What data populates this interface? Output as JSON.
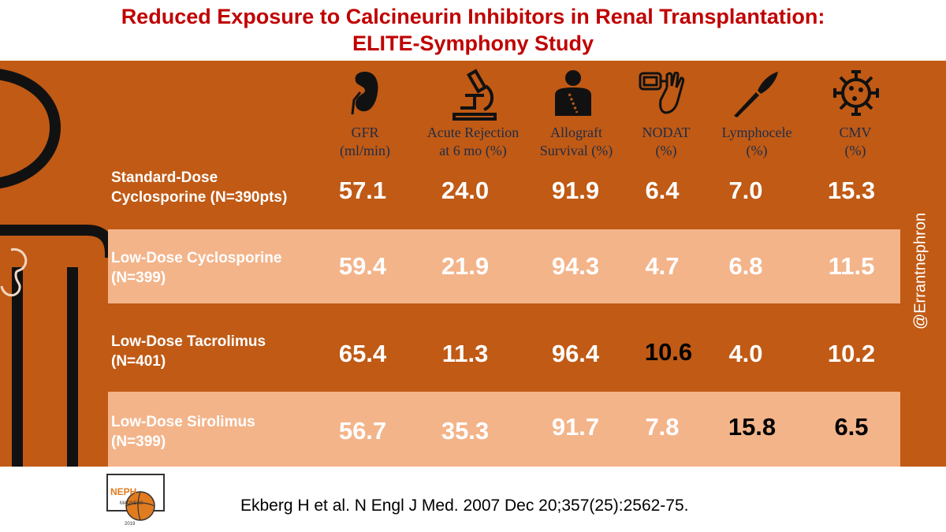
{
  "title": {
    "line1": "Reduced Exposure to Calcineurin Inhibitors in Renal Transplantation:",
    "line2": "ELITE-Symphony Study"
  },
  "colors": {
    "band": "#c05a15",
    "row_highlight": "#f3b48a",
    "title": "#c00000",
    "header_text": "#1f2c47"
  },
  "columns": [
    {
      "label": "GFR",
      "unit": "(ml/min)",
      "icon": "kidney-icon"
    },
    {
      "label": "Acute Rejection",
      "unit": "at 6 mo (%)",
      "icon": "microscope-icon"
    },
    {
      "label": "Allograft",
      "unit": "Survival (%)",
      "icon": "transplant-patient-icon"
    },
    {
      "label": "NODAT",
      "unit": "(%)",
      "icon": "glucose-meter-icon"
    },
    {
      "label": "Lymphocele",
      "unit": "(%)",
      "icon": "scalpel-icon"
    },
    {
      "label": "CMV",
      "unit": "(%)",
      "icon": "virus-icon"
    }
  ],
  "rows": [
    {
      "label1": "Standard-Dose",
      "label2": "Cyclosporine (N=390pts)",
      "values": [
        "57.1",
        "24.0",
        "91.9",
        "6.4",
        "7.0",
        "15.3"
      ]
    },
    {
      "label1": "Low-Dose Cyclosporine",
      "label2": "(N=399)",
      "values": [
        "59.4",
        "21.9",
        "94.3",
        "4.7",
        "6.8",
        "11.5"
      ]
    },
    {
      "label1": "Low-Dose Tacrolimus",
      "label2": "(N=401)",
      "values": [
        "65.4",
        "11.3",
        "96.4",
        "10.6",
        "4.0",
        "10.2"
      ]
    },
    {
      "label1": "Low-Dose Sirolimus",
      "label2": "(N=399)",
      "values": [
        "56.7",
        "35.3",
        "91.7",
        "7.8",
        "15.8",
        "6.5"
      ]
    }
  ],
  "handle": "@Errantnephron",
  "citation": "Ekberg H et al. N Engl J Med. 2007 Dec 20;357(25):2562-75.",
  "logo": {
    "text1": "NEPH",
    "text2": "MADNESS",
    "year": "2019"
  }
}
